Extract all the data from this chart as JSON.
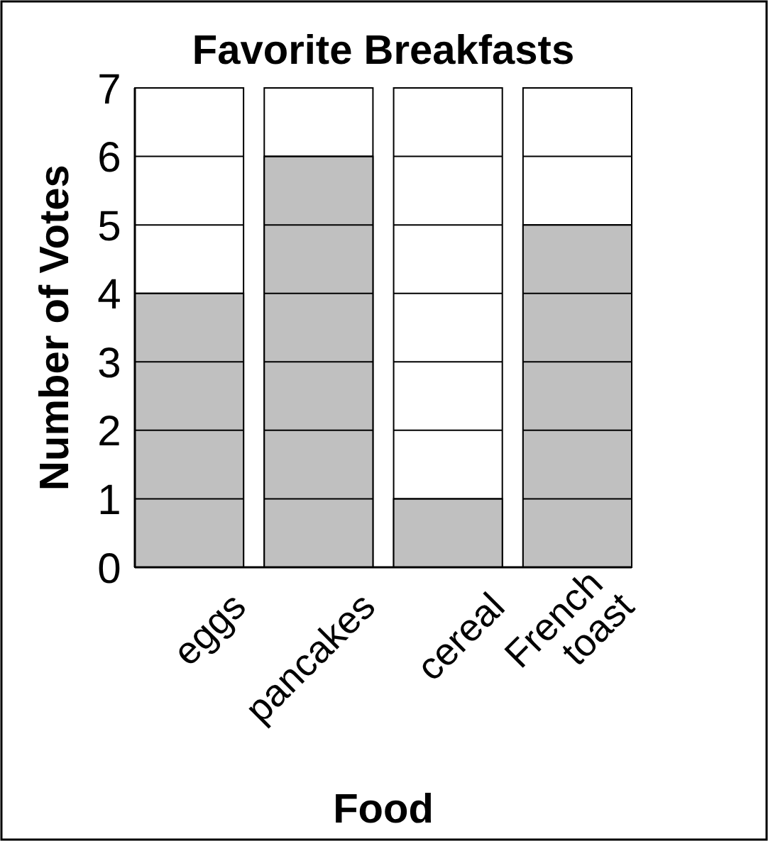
{
  "chart_data": {
    "type": "bar",
    "title": "Favorite Breakfasts",
    "xlabel": "Food",
    "ylabel": "Number of Votes",
    "categories": [
      "eggs",
      "pancakes",
      "cereal",
      "French toast"
    ],
    "values": [
      4,
      6,
      1,
      5
    ],
    "color": "#c0c0c0",
    "ylim": [
      0,
      7
    ],
    "yticks": [
      0,
      1,
      2,
      3,
      4,
      5,
      6,
      7
    ],
    "grid": "y"
  }
}
